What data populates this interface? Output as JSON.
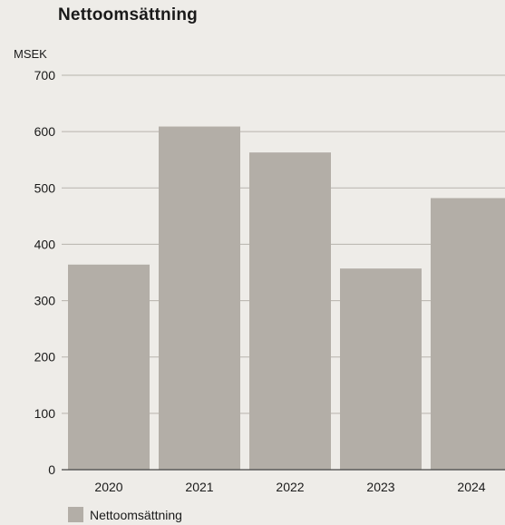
{
  "chart_data": {
    "type": "bar",
    "title": "Nettoomsättning",
    "ylabel": "MSEK",
    "xlabel": "",
    "categories": [
      "2020",
      "2021",
      "2022",
      "2023",
      "2024"
    ],
    "series": [
      {
        "name": "Nettoomsättning",
        "values": [
          364,
          609,
          563,
          357,
          482
        ],
        "color": "#b3aea7"
      }
    ],
    "ylim": [
      0,
      700
    ],
    "yticks": [
      "0",
      "100",
      "200",
      "300",
      "400",
      "500",
      "600",
      "700"
    ],
    "grid": true,
    "gridColor": "#b7b3ad",
    "legend": "bottom-left"
  }
}
